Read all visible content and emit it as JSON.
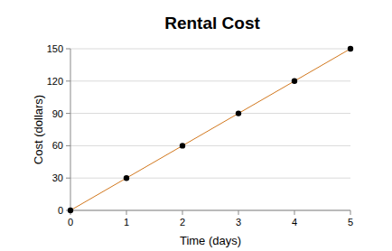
{
  "chart_data": {
    "type": "line",
    "title": "Rental Cost",
    "x_label": "Time (days)",
    "y_label": "Cost (dollars)",
    "x": [
      0,
      1,
      2,
      3,
      4,
      5
    ],
    "values": [
      0,
      30,
      60,
      90,
      120,
      150
    ],
    "color": "#d2781e",
    "marker": "circle",
    "xlim": [
      0,
      5
    ],
    "xticks": [
      0,
      1,
      2,
      3,
      4,
      5
    ],
    "ylim": [
      0,
      150
    ],
    "yticks": [
      0,
      30,
      60,
      90,
      120,
      150
    ],
    "grid": true
  }
}
